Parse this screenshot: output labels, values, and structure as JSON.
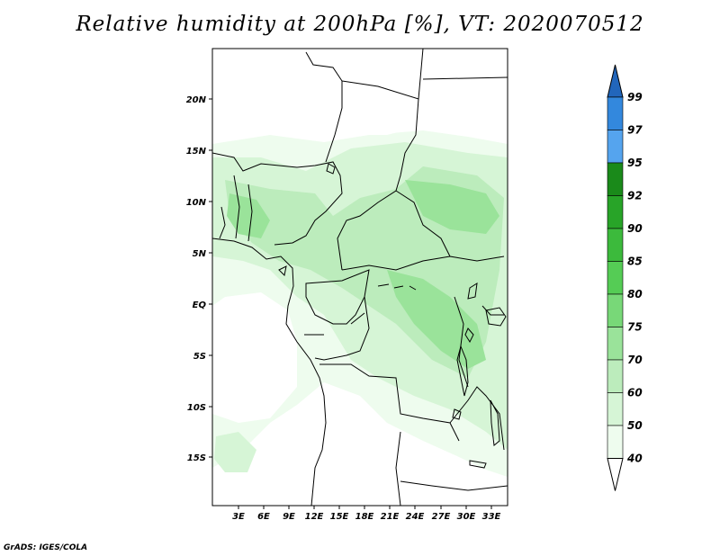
{
  "title": "Relative humidity at 200hPa [%], VT: 2020070512",
  "credit": "GrADS: IGES/COLA",
  "map": {
    "lat_labels": [
      "20N",
      "15N",
      "10N",
      "5N",
      "EQ",
      "5S",
      "10S",
      "15S"
    ],
    "lon_labels": [
      "3E",
      "6E",
      "9E",
      "12E",
      "15E",
      "18E",
      "21E",
      "24E",
      "27E",
      "30E",
      "33E"
    ]
  },
  "colorbar": {
    "labels": [
      "99",
      "97",
      "95",
      "92",
      "90",
      "85",
      "80",
      "75",
      "70",
      "60",
      "50",
      "40"
    ],
    "colors": [
      "#2266bb",
      "#3388dd",
      "#55a4ee",
      "#1a8a1a",
      "#28a428",
      "#3cba3c",
      "#55cc55",
      "#78d878",
      "#9ae39a",
      "#bcecbc",
      "#d6f5d6",
      "#eefcee"
    ],
    "cap_top_color": "#2266bb",
    "cap_bottom_color": "#ffffff"
  }
}
